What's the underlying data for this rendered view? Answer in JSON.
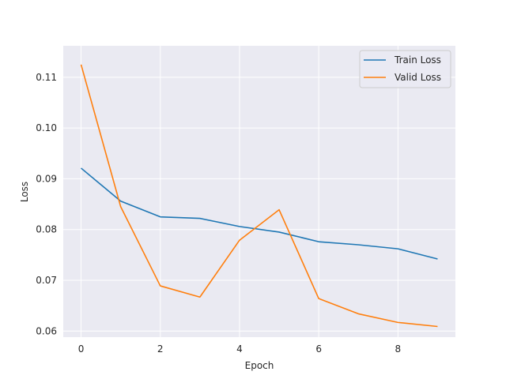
{
  "chart_data": {
    "type": "line",
    "title": "",
    "xlabel": "Epoch",
    "ylabel": "Loss",
    "xlim": [
      -0.45,
      9.45
    ],
    "ylim": [
      0.0588,
      0.1162
    ],
    "xticks": [
      0,
      2,
      4,
      6,
      8
    ],
    "yticks": [
      0.06,
      0.07,
      0.08,
      0.09,
      0.1,
      0.11
    ],
    "xtick_labels": [
      "0",
      "2",
      "4",
      "6",
      "8"
    ],
    "ytick_labels": [
      "0.06",
      "0.07",
      "0.08",
      "0.09",
      "0.10",
      "0.11"
    ],
    "grid": true,
    "legend_position": "upper right",
    "x": [
      0,
      1,
      2,
      3,
      4,
      5,
      6,
      7,
      8,
      9
    ],
    "series": [
      {
        "name": "Train Loss",
        "color": "#1f77b4",
        "values": [
          0.0921,
          0.0856,
          0.0825,
          0.0822,
          0.0806,
          0.0795,
          0.0776,
          0.077,
          0.0762,
          0.0742
        ]
      },
      {
        "name": "Valid Loss",
        "color": "#ff7f0e",
        "values": [
          0.1125,
          0.0845,
          0.0689,
          0.0667,
          0.0779,
          0.0839,
          0.0664,
          0.0634,
          0.0617,
          0.0609
        ]
      }
    ]
  },
  "style": {
    "plot_background": "#eaeaf2",
    "grid_color": "#ffffff",
    "legend_background": "#eaeaf2",
    "legend_border": "#cccccc",
    "text_color": "#262626"
  }
}
